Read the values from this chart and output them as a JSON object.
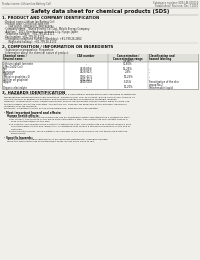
{
  "bg_color": "#f0efea",
  "header_left": "Product name: Lithium Ion Battery Cell",
  "header_right_line1": "Substance number: SDS-LIB-000010",
  "header_right_line2": "Established / Revision: Dec.7.2010",
  "title": "Safety data sheet for chemical products (SDS)",
  "section1_title": "1. PRODUCT AND COMPANY IDENTIFICATION",
  "section1_items": [
    "Product name: Lithium Ion Battery Cell",
    "Product code: Cylindrical-type cell",
    "  (IHR18650J, IHR18650L, IHR18650A)",
    "Company name:   Sanyo Electric Co., Ltd., Mobile Energy Company",
    "Address:   2001  Kamimukuya, Sumoto-City, Hyogo, Japan",
    "Telephone number:   +81-799-26-4111",
    "Fax number: +81-799-26-4129",
    "Emergency telephone number (Weekday): +81-799-26-2662",
    "                          (Night and holiday): +81-799-26-4131"
  ],
  "section2_title": "2. COMPOSITION / INFORMATION ON INGREDIENTS",
  "section2_sub1": "Substance or preparation: Preparation",
  "section2_sub2": "Information about the chemical nature of product:",
  "table_rows": [
    [
      "Chemical name /",
      "CAS number",
      "Concentration /",
      "Classification and"
    ],
    [
      "Several name",
      "",
      "Concentration range",
      "hazard labeling"
    ],
    [
      "",
      "",
      "(in wt%)",
      ""
    ],
    [
      "Lithium cobalt laminate",
      "-",
      "30-60%",
      ""
    ],
    [
      "(LiMn-CoO2(Co))",
      "",
      "",
      ""
    ],
    [
      "Iron",
      "7439-89-6",
      "15-25%",
      "-"
    ],
    [
      "Aluminum",
      "7429-90-5",
      "2-8%",
      "-"
    ],
    [
      "Graphite",
      "",
      "",
      ""
    ],
    [
      "(Metal in graphite=1)",
      "7782-42-5",
      "10-25%",
      "-"
    ],
    [
      "(Al film on graphite)",
      "7782-44-7",
      "",
      ""
    ],
    [
      "Copper",
      "7440-50-8",
      "5-15%",
      "Sensitization of the skin"
    ],
    [
      "",
      "",
      "",
      "group No.2"
    ],
    [
      "Organic electrolyte",
      "-",
      "10-20%",
      "Inflammable liquid"
    ]
  ],
  "section3_title": "3. HAZARDS IDENTIFICATION",
  "section3_para": [
    "For the battery cell, chemical materials are stored in a hermetically sealed metal case, designed to withstand",
    "temperatures during portable-type operations. During normal use, as a result, during normal use, there is no",
    "physical danger of ignition or explosion and thermical danger of hazardous materials leakage.",
    "However, if exposed to a fire, added mechanical shocks, decomposed, broken electric wires by miss-use,",
    "the gas insides can not be operated. The battery cell case will be breached at the extreme, hazardous",
    "materials may be released.",
    "Moreover, if heated strongly by the surrounding fire, smit gas may be emitted."
  ],
  "bullet1": "Most important hazard and effects:",
  "human_label": "Human health effects:",
  "health_lines": [
    "Inhalation: The release of the electrolyte has an anesthesia action and stimulates a respiratory tract.",
    "Skin contact: The release of the electrolyte stimulates a skin. The electrolyte skin contact causes a",
    "sore and stimulation on the skin.",
    "Eye contact: The release of the electrolyte stimulates eyes. The electrolyte eye contact causes a sore",
    "and stimulation on the eye. Especially, a substance that causes a strong inflammation of the eye is",
    "contained.",
    "Environmental effects: Since a battery cell remains in the environment, do not throw out it into the",
    "environment."
  ],
  "bullet2": "Specific hazards:",
  "spec_lines": [
    "If the electrolyte contacts with water, it will generate detrimental hydrogen fluoride.",
    "Since the said electrolyte is inflammable liquid, do not bring close to fire."
  ]
}
